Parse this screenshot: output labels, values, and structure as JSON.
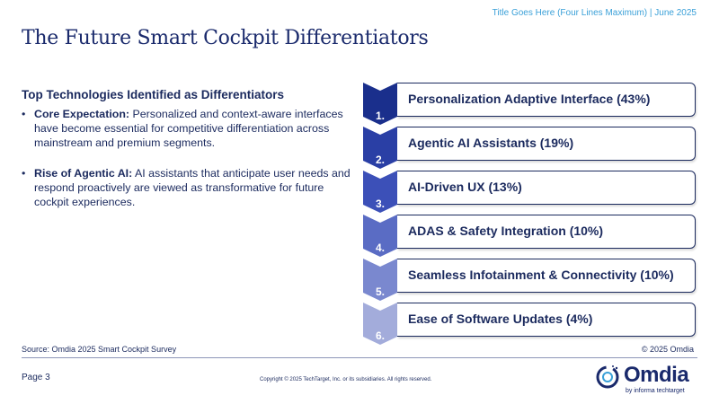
{
  "header_note": "Title Goes Here (Four Lines Maximum) | June 2025",
  "title": "The Future Smart Cockpit Differentiators",
  "left": {
    "subhead": "Top Technologies Identified as Differentiators",
    "bullets": [
      {
        "lead": "Core Expectation:",
        "text": " Personalized and context-aware interfaces have become essential for competitive differentiation across mainstream and premium segments."
      },
      {
        "lead": "Rise of Agentic AI:",
        "text": " AI assistants that anticipate user needs and respond proactively are viewed as transformative for future cockpit experiences."
      }
    ]
  },
  "items": [
    {
      "num": "1.",
      "label": "Personalization Adaptive Interface (43%)",
      "color": "#1a2f8c"
    },
    {
      "num": "2.",
      "label": "Agentic AI Assistants (19%)",
      "color": "#2a3fa5"
    },
    {
      "num": "3.",
      "label": "AI-Driven UX (13%)",
      "color": "#3c50b8"
    },
    {
      "num": "4.",
      "label": "ADAS & Safety Integration (10%)",
      "color": "#5a6cc4"
    },
    {
      "num": "5.",
      "label": "Seamless Infotainment & Connectivity (10%)",
      "color": "#7a88cf"
    },
    {
      "num": "6.",
      "label": "Ease of Software Updates (4%)",
      "color": "#a3acdb"
    }
  ],
  "footer": {
    "source": "Source: Omdia 2025 Smart Cockpit Survey",
    "copyright_right": "© 2025 Omdia",
    "page": "Page 3",
    "copyright": "Copyright © 2025 TechTarget, Inc. or its subsidiaries. All rights reserved."
  },
  "logo": {
    "word": "Omdia",
    "sub": "by informa techtarget"
  }
}
